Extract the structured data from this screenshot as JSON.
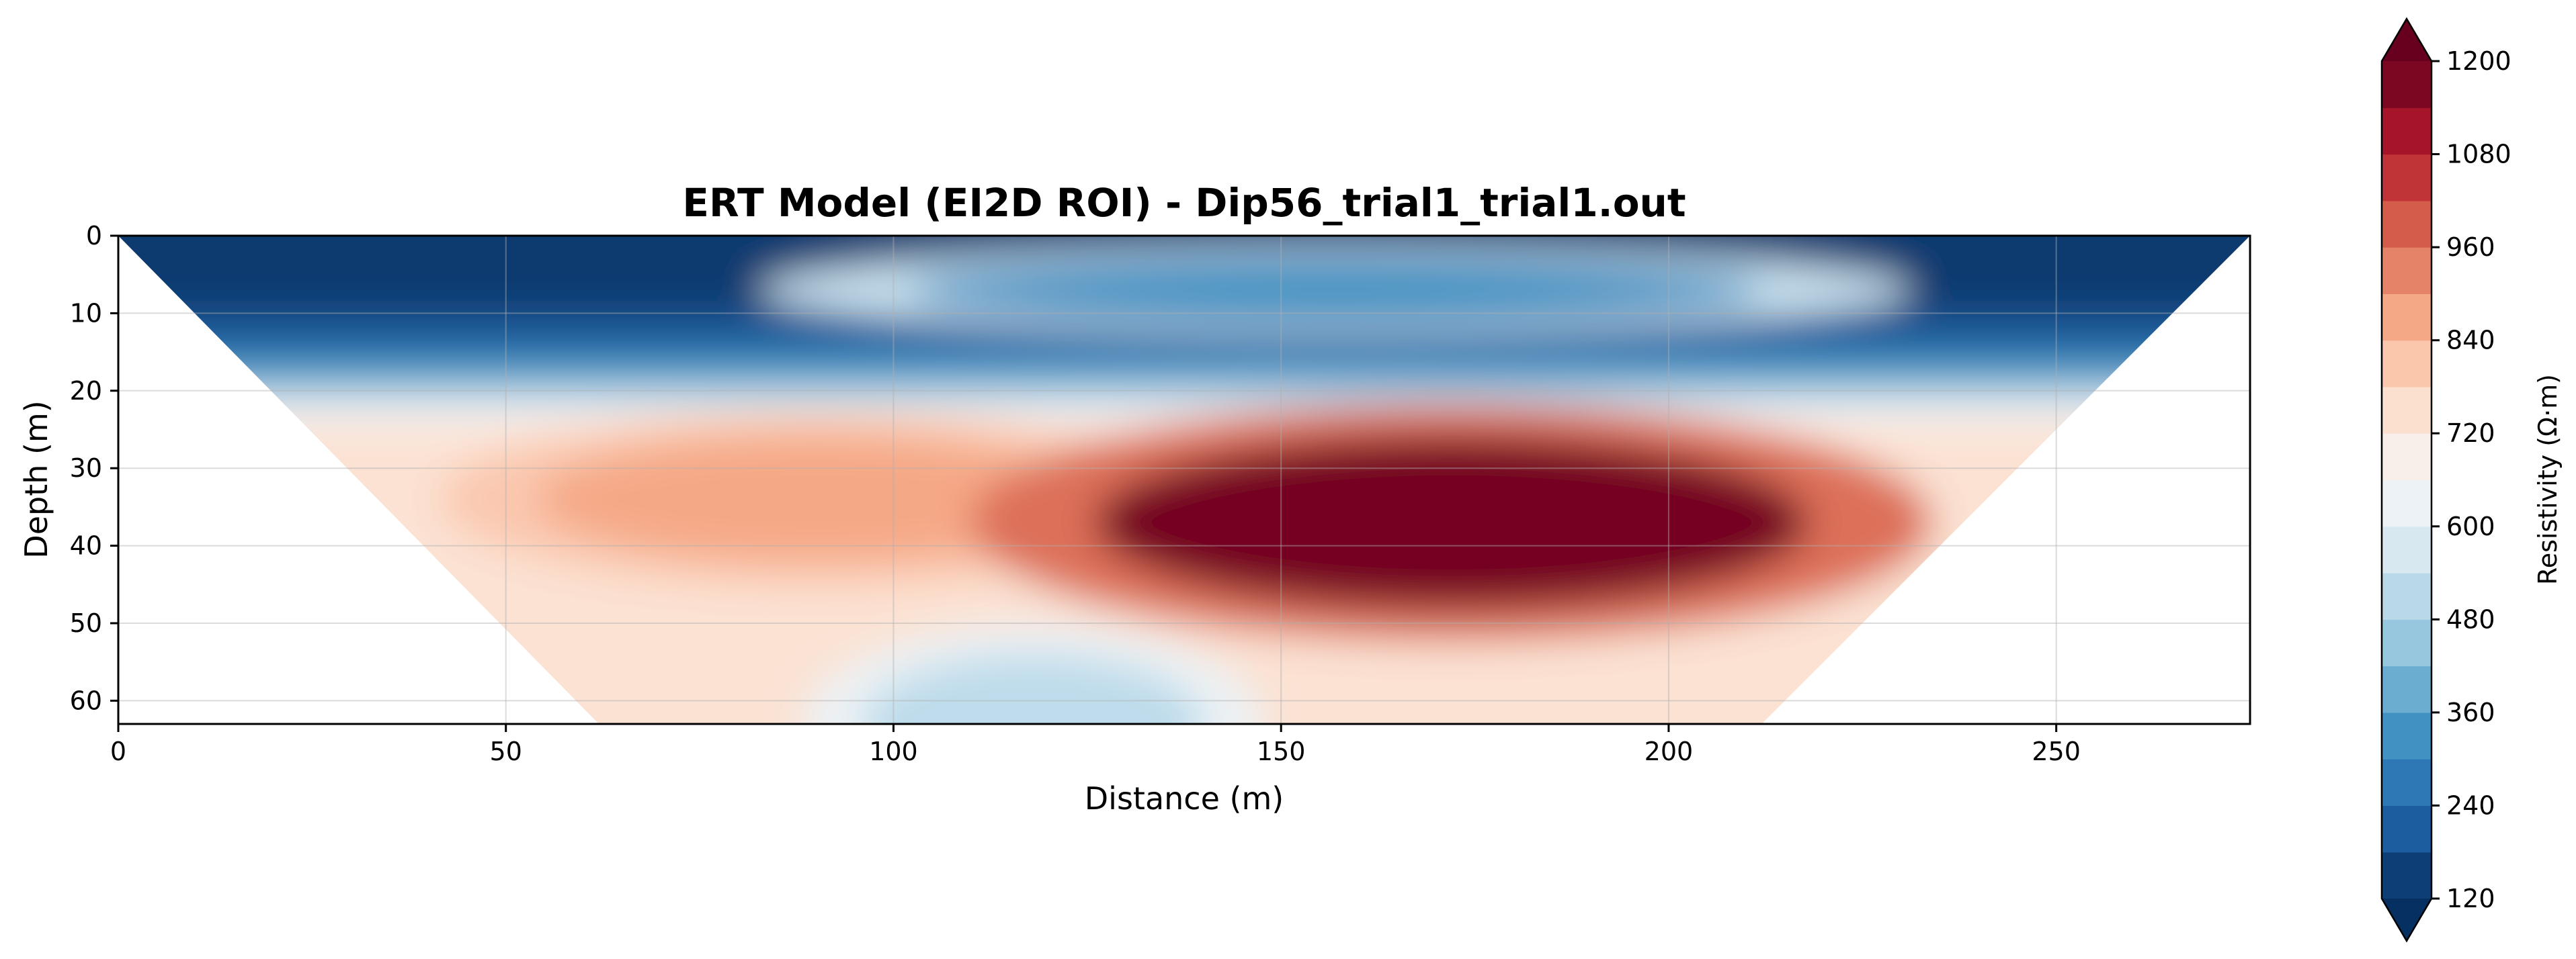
{
  "chart_data": {
    "type": "heatmap",
    "title": "ERT Model (EI2D ROI) - Dip56_trial1_trial1.out",
    "xlabel": "Distance (m)",
    "ylabel": "Depth (m)",
    "xlim": [
      0,
      275
    ],
    "ylim": [
      63,
      0
    ],
    "y_inverted": true,
    "x_ticks": [
      0,
      50,
      100,
      150,
      200,
      250
    ],
    "y_ticks": [
      0,
      10,
      20,
      30,
      40,
      50,
      60
    ],
    "grid": true,
    "colormap": "RdBu_r (reversed red-blue)",
    "colorbar": {
      "label": "Resistivity (Ω·m)",
      "range": [
        120,
        1200
      ],
      "ticks": [
        120,
        240,
        360,
        480,
        600,
        720,
        840,
        960,
        1080,
        1200
      ],
      "extend": "both"
    },
    "valid_region": {
      "shape": "inverted trapezoid",
      "top_x": [
        0,
        275
      ],
      "bottom_x_at_depth_63": [
        62,
        212
      ]
    },
    "features": [
      {
        "name": "conductive surface layer",
        "depth_range": [
          0,
          18
        ],
        "x_range": [
          0,
          275
        ],
        "resistivity_approx": 150
      },
      {
        "name": "moderate zone",
        "x_center": 157,
        "depth_center": 7,
        "resistivity_approx": 330
      },
      {
        "name": "resistive anomaly west",
        "x_center": 90,
        "depth_center": 34,
        "resistivity_approx": 870
      },
      {
        "name": "resistive anomaly east",
        "x_center": 172,
        "depth_center": 37,
        "resistivity_approx": 1180
      },
      {
        "name": "conductive pocket",
        "x_center": 118,
        "depth_center": 63,
        "resistivity_approx": 520
      }
    ]
  },
  "colors": {
    "colorbar_stops": [
      "#053061",
      "#2166ac",
      "#4393c3",
      "#92c5de",
      "#d1e5f0",
      "#f7f7f7",
      "#fddbc7",
      "#f4a582",
      "#d6604d",
      "#b2182b",
      "#67001f"
    ],
    "axis": "#000000",
    "grid": "#b0b0b0"
  }
}
